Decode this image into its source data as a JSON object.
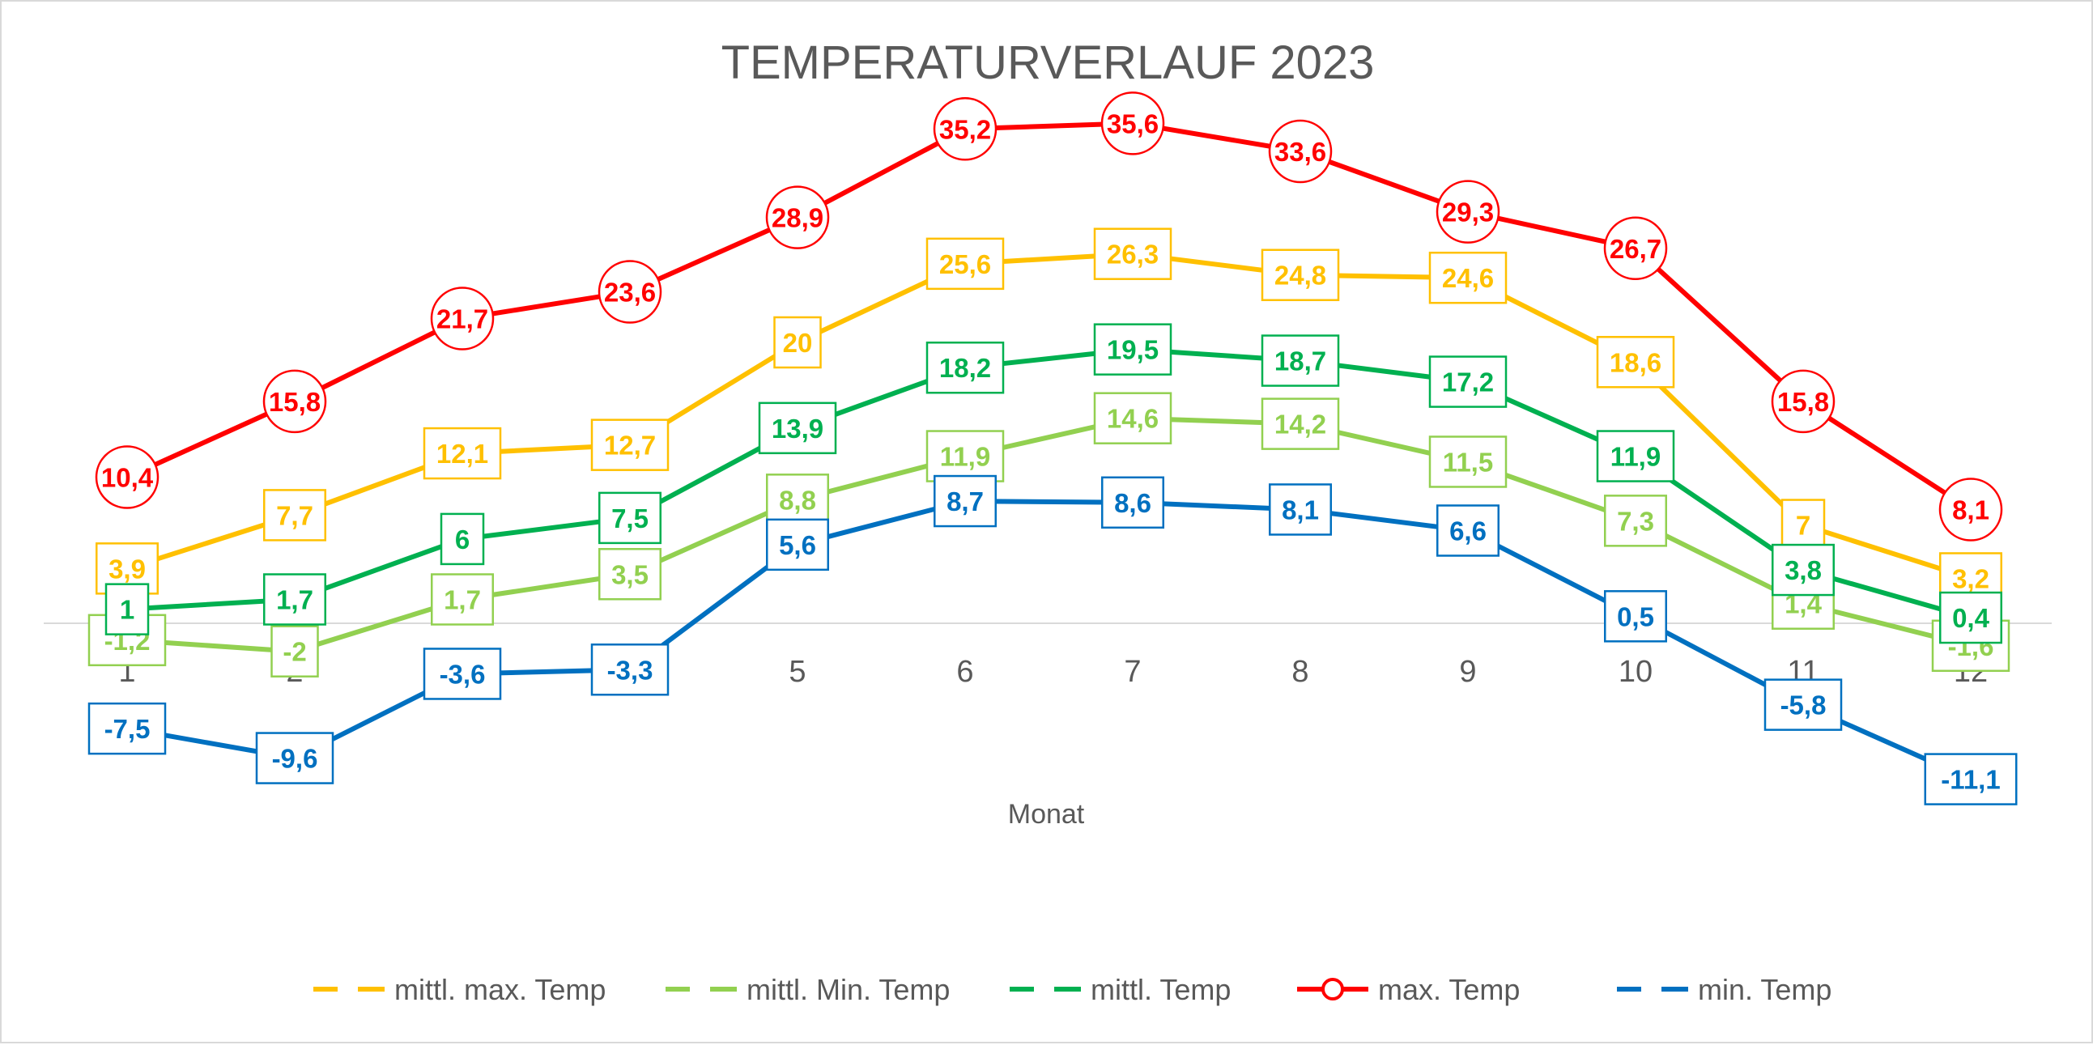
{
  "chart_data": {
    "type": "line",
    "title": "TEMPERATURVERLAUF 2023",
    "xlabel": "Monat",
    "ylabel": "",
    "categories": [
      "1",
      "2",
      "3",
      "4",
      "5",
      "6",
      "7",
      "8",
      "9",
      "10",
      "11",
      "12"
    ],
    "ylim": [
      -15,
      40
    ],
    "grid": false,
    "legend_position": "bottom",
    "series": [
      {
        "name": "mittl. max. Temp",
        "color": "#FFC000",
        "marker": "square",
        "values": [
          3.9,
          7.7,
          12.1,
          12.7,
          20,
          25.6,
          26.3,
          24.8,
          24.6,
          18.6,
          7,
          3.2
        ],
        "labels": [
          "3,9",
          "7,7",
          "12,1",
          "12,7",
          "20",
          "25,6",
          "26,3",
          "24,8",
          "24,6",
          "18,6",
          "7",
          "3,2"
        ]
      },
      {
        "name": "mittl. Min. Temp",
        "color": "#92D050",
        "marker": "square",
        "values": [
          -1.2,
          -2,
          1.7,
          3.5,
          8.8,
          11.9,
          14.6,
          14.2,
          11.5,
          7.3,
          1.4,
          -1.6
        ],
        "labels": [
          "-1,2",
          "-2",
          "1,7",
          "3,5",
          "8,8",
          "11,9",
          "14,6",
          "14,2",
          "11,5",
          "7,3",
          "1,4",
          "-1,6"
        ]
      },
      {
        "name": "mittl. Temp",
        "color": "#00B050",
        "marker": "square",
        "values": [
          1,
          1.7,
          6,
          7.5,
          13.9,
          18.2,
          19.5,
          18.7,
          17.2,
          11.9,
          3.8,
          0.4
        ],
        "labels": [
          "1",
          "1,7",
          "6",
          "7,5",
          "13,9",
          "18,2",
          "19,5",
          "18,7",
          "17,2",
          "11,9",
          "3,8",
          "0,4"
        ]
      },
      {
        "name": "max. Temp",
        "color": "#FF0000",
        "marker": "circle",
        "values": [
          10.4,
          15.8,
          21.7,
          23.6,
          28.9,
          35.2,
          35.6,
          33.6,
          29.3,
          26.7,
          15.8,
          8.1
        ],
        "labels": [
          "10,4",
          "15,8",
          "21,7",
          "23,6",
          "28,9",
          "35,2",
          "35,6",
          "33,6",
          "29,3",
          "26,7",
          "15,8",
          "8,1"
        ]
      },
      {
        "name": "min. Temp",
        "color": "#0070C0",
        "marker": "square",
        "values": [
          -7.5,
          -9.6,
          -3.6,
          -3.3,
          5.6,
          8.7,
          8.6,
          8.1,
          6.6,
          0.5,
          -5.8,
          -11.1
        ],
        "labels": [
          "-7,5",
          "-9,6",
          "-3,6",
          "-3,3",
          "5,6",
          "8,7",
          "8,6",
          "8,1",
          "6,6",
          "0,5",
          "-5,8",
          "-11,1"
        ]
      }
    ]
  }
}
